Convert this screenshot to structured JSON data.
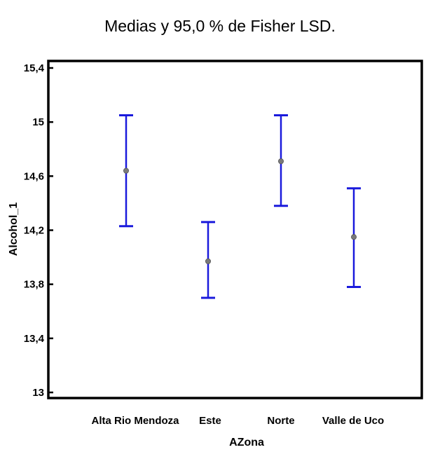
{
  "chart_data": {
    "type": "errorbar",
    "title": "Medias y 95,0 % de Fisher LSD.",
    "xlabel": "AZona",
    "ylabel": "Alcohol_1",
    "ylim": [
      12.95,
      15.45
    ],
    "yticks": [
      13,
      13.4,
      13.8,
      14.2,
      14.6,
      15,
      15.4
    ],
    "ytick_labels": [
      "13",
      "13,4",
      "13,8",
      "14,2",
      "14,6",
      "15",
      "15,4"
    ],
    "categories": [
      "Alta Rio Mendoza",
      "Este",
      "Norte",
      "Valle de Uco"
    ],
    "means": [
      14.64,
      13.97,
      14.71,
      14.15
    ],
    "lower": [
      14.23,
      13.7,
      14.38,
      13.78
    ],
    "upper": [
      15.05,
      14.26,
      15.05,
      14.51
    ],
    "colors": {
      "interval": "#1a1adc",
      "mean_marker": "#7a7a7a",
      "frame": "#000000"
    }
  }
}
